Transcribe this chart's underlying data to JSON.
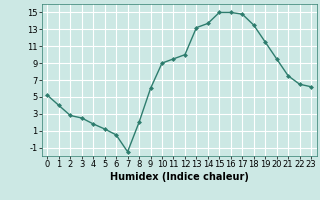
{
  "x": [
    0,
    1,
    2,
    3,
    4,
    5,
    6,
    7,
    8,
    9,
    10,
    11,
    12,
    13,
    14,
    15,
    16,
    17,
    18,
    19,
    20,
    21,
    22,
    23
  ],
  "y": [
    5.2,
    4.0,
    2.8,
    2.5,
    1.8,
    1.2,
    0.5,
    -1.5,
    2.0,
    6.0,
    9.0,
    9.5,
    10.0,
    13.2,
    13.7,
    15.0,
    15.0,
    14.8,
    13.5,
    11.5,
    9.5,
    7.5,
    6.5,
    6.2
  ],
  "line_color": "#2e7d6e",
  "marker_color": "#2e7d6e",
  "bg_color": "#cce8e4",
  "grid_color": "#ffffff",
  "xlabel": "Humidex (Indice chaleur)",
  "xlim": [
    -0.5,
    23.5
  ],
  "ylim": [
    -2.0,
    16.0
  ],
  "yticks": [
    -1,
    1,
    3,
    5,
    7,
    9,
    11,
    13,
    15
  ],
  "xticks": [
    0,
    1,
    2,
    3,
    4,
    5,
    6,
    7,
    8,
    9,
    10,
    11,
    12,
    13,
    14,
    15,
    16,
    17,
    18,
    19,
    20,
    21,
    22,
    23
  ],
  "xlabel_fontsize": 7.0,
  "tick_fontsize": 6.0
}
